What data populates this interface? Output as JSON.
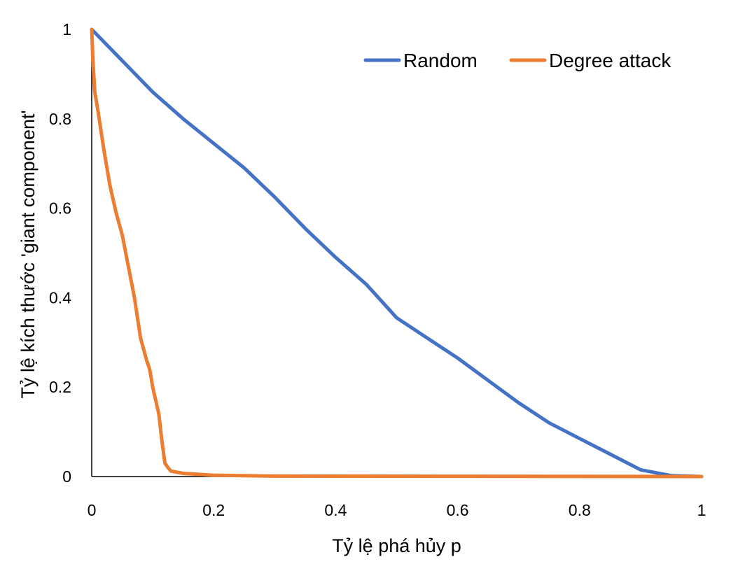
{
  "chart_data": {
    "type": "line",
    "title": "",
    "xlabel": "Tỷ lệ phá hủy p",
    "ylabel": "Tỷ lệ kích thước 'giant component'",
    "xlim": [
      0,
      1
    ],
    "ylim": [
      0,
      1
    ],
    "x_ticks": [
      "0",
      "0.2",
      "0.4",
      "0.6",
      "0.8",
      "1"
    ],
    "y_ticks": [
      "0",
      "0.2",
      "0.4",
      "0.6",
      "0.8",
      "1"
    ],
    "grid": false,
    "legend_position": "top-right",
    "series": [
      {
        "name": "Random",
        "color": "#4472C4",
        "x": [
          0,
          0.05,
          0.1,
          0.15,
          0.2,
          0.25,
          0.3,
          0.35,
          0.4,
          0.45,
          0.5,
          0.55,
          0.6,
          0.65,
          0.7,
          0.75,
          0.8,
          0.85,
          0.9,
          0.95,
          1.0
        ],
        "y": [
          1.0,
          0.93,
          0.86,
          0.8,
          0.745,
          0.69,
          0.625,
          0.555,
          0.49,
          0.43,
          0.355,
          0.31,
          0.265,
          0.215,
          0.165,
          0.12,
          0.085,
          0.05,
          0.015,
          0.002,
          0.0
        ]
      },
      {
        "name": "Degree attack",
        "color": "#ED7D31",
        "x": [
          0,
          0.002,
          0.005,
          0.01,
          0.02,
          0.03,
          0.04,
          0.05,
          0.06,
          0.07,
          0.08,
          0.09,
          0.095,
          0.1,
          0.11,
          0.115,
          0.12,
          0.125,
          0.13,
          0.15,
          0.2,
          0.3,
          1.0
        ],
        "y": [
          1.0,
          0.93,
          0.86,
          0.82,
          0.73,
          0.65,
          0.59,
          0.54,
          0.47,
          0.4,
          0.31,
          0.26,
          0.24,
          0.2,
          0.14,
          0.08,
          0.03,
          0.02,
          0.012,
          0.007,
          0.003,
          0.001,
          0.0
        ]
      }
    ]
  }
}
